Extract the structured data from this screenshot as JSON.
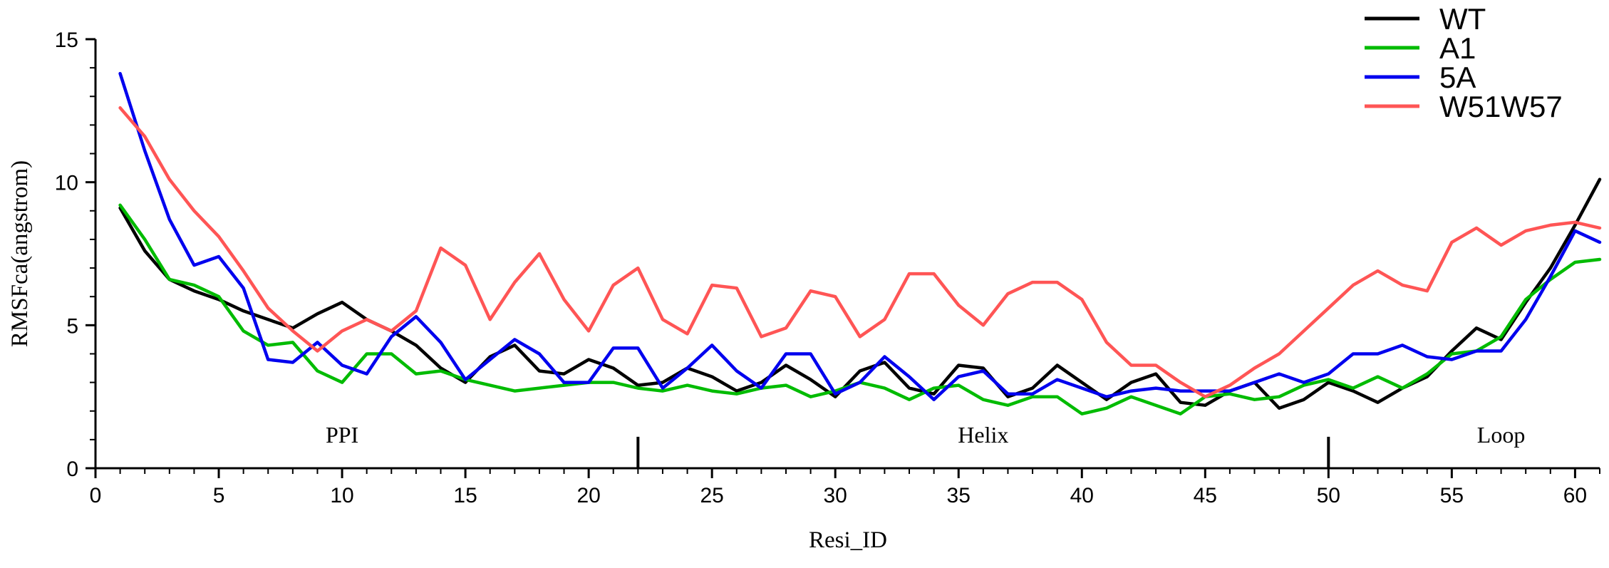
{
  "chart_data": {
    "type": "line",
    "title": "",
    "xlabel": "Resi_ID",
    "ylabel": "RMSFca(angstrom)",
    "xlim": [
      0,
      61
    ],
    "ylim": [
      0,
      15
    ],
    "x_ticks": [
      0,
      5,
      10,
      15,
      20,
      25,
      30,
      35,
      40,
      45,
      50,
      55,
      60
    ],
    "y_ticks": [
      0,
      5,
      10,
      15
    ],
    "x": [
      1,
      2,
      3,
      4,
      5,
      6,
      7,
      8,
      9,
      10,
      11,
      12,
      13,
      14,
      15,
      16,
      17,
      18,
      19,
      20,
      21,
      22,
      23,
      24,
      25,
      26,
      27,
      28,
      29,
      30,
      31,
      32,
      33,
      34,
      35,
      36,
      37,
      38,
      39,
      40,
      41,
      42,
      43,
      44,
      45,
      46,
      47,
      48,
      49,
      50,
      51,
      52,
      53,
      54,
      55,
      56,
      57,
      58,
      59,
      60,
      61
    ],
    "series": [
      {
        "name": "WT",
        "color": "#000000",
        "values": [
          9.1,
          7.6,
          6.6,
          6.2,
          5.9,
          5.5,
          5.2,
          4.9,
          5.4,
          5.8,
          5.2,
          4.8,
          4.3,
          3.5,
          3.0,
          3.9,
          4.3,
          3.4,
          3.3,
          3.8,
          3.5,
          2.9,
          3.0,
          3.5,
          3.2,
          2.7,
          3.0,
          3.6,
          3.1,
          2.5,
          3.4,
          3.7,
          2.8,
          2.6,
          3.6,
          3.5,
          2.5,
          2.8,
          3.6,
          3.0,
          2.4,
          3.0,
          3.3,
          2.3,
          2.2,
          2.7,
          3.0,
          2.1,
          2.4,
          3.0,
          2.7,
          2.3,
          2.8,
          3.2,
          4.1,
          4.9,
          4.5,
          5.8,
          7.0,
          8.5,
          10.1
        ]
      },
      {
        "name": "A1",
        "color": "#00bb00",
        "values": [
          9.2,
          8.0,
          6.6,
          6.4,
          6.0,
          4.8,
          4.3,
          4.4,
          3.4,
          3.0,
          4.0,
          4.0,
          3.3,
          3.4,
          3.1,
          2.9,
          2.7,
          2.8,
          2.9,
          3.0,
          3.0,
          2.8,
          2.7,
          2.9,
          2.7,
          2.6,
          2.8,
          2.9,
          2.5,
          2.7,
          3.0,
          2.8,
          2.4,
          2.8,
          2.9,
          2.4,
          2.2,
          2.5,
          2.5,
          1.9,
          2.1,
          2.5,
          2.2,
          1.9,
          2.5,
          2.6,
          2.4,
          2.5,
          2.9,
          3.1,
          2.8,
          3.2,
          2.8,
          3.3,
          4.0,
          4.1,
          4.6,
          5.9,
          6.6,
          7.2,
          7.3
        ]
      },
      {
        "name": "5A",
        "color": "#0000ee",
        "values": [
          13.8,
          11.1,
          8.7,
          7.1,
          7.4,
          6.3,
          3.8,
          3.7,
          4.4,
          3.6,
          3.3,
          4.6,
          5.3,
          4.4,
          3.1,
          3.8,
          4.5,
          4.0,
          3.0,
          3.0,
          4.2,
          4.2,
          2.8,
          3.5,
          4.3,
          3.4,
          2.8,
          4.0,
          4.0,
          2.6,
          3.0,
          3.9,
          3.2,
          2.4,
          3.2,
          3.4,
          2.6,
          2.6,
          3.1,
          2.8,
          2.5,
          2.7,
          2.8,
          2.7,
          2.7,
          2.7,
          3.0,
          3.3,
          3.0,
          3.3,
          4.0,
          4.0,
          4.3,
          3.9,
          3.8,
          4.1,
          4.1,
          5.2,
          6.7,
          8.3,
          7.9
        ]
      },
      {
        "name": "W51W57",
        "color": "#ff5555",
        "values": [
          12.6,
          11.6,
          10.1,
          9.0,
          8.1,
          6.9,
          5.6,
          4.8,
          4.1,
          4.8,
          5.2,
          4.8,
          5.5,
          7.7,
          7.1,
          5.2,
          6.5,
          7.5,
          5.9,
          4.8,
          6.4,
          7.0,
          5.2,
          4.7,
          6.4,
          6.3,
          4.6,
          4.9,
          6.2,
          6.0,
          4.6,
          5.2,
          6.8,
          6.8,
          5.7,
          5.0,
          6.1,
          6.5,
          6.5,
          5.9,
          4.4,
          3.6,
          3.6,
          3.0,
          2.5,
          2.9,
          3.5,
          4.0,
          4.8,
          5.6,
          6.4,
          6.9,
          6.4,
          6.2,
          7.9,
          8.4,
          7.8,
          8.3,
          8.5,
          8.6,
          8.4
        ]
      }
    ],
    "regions": [
      {
        "label": "PPI",
        "label_x": 10
      },
      {
        "label": "Helix",
        "label_x": 36
      },
      {
        "label": "Loop",
        "label_x": 57
      }
    ],
    "region_dividers": [
      22,
      50
    ],
    "legend_position": "top-right",
    "grid": false
  }
}
